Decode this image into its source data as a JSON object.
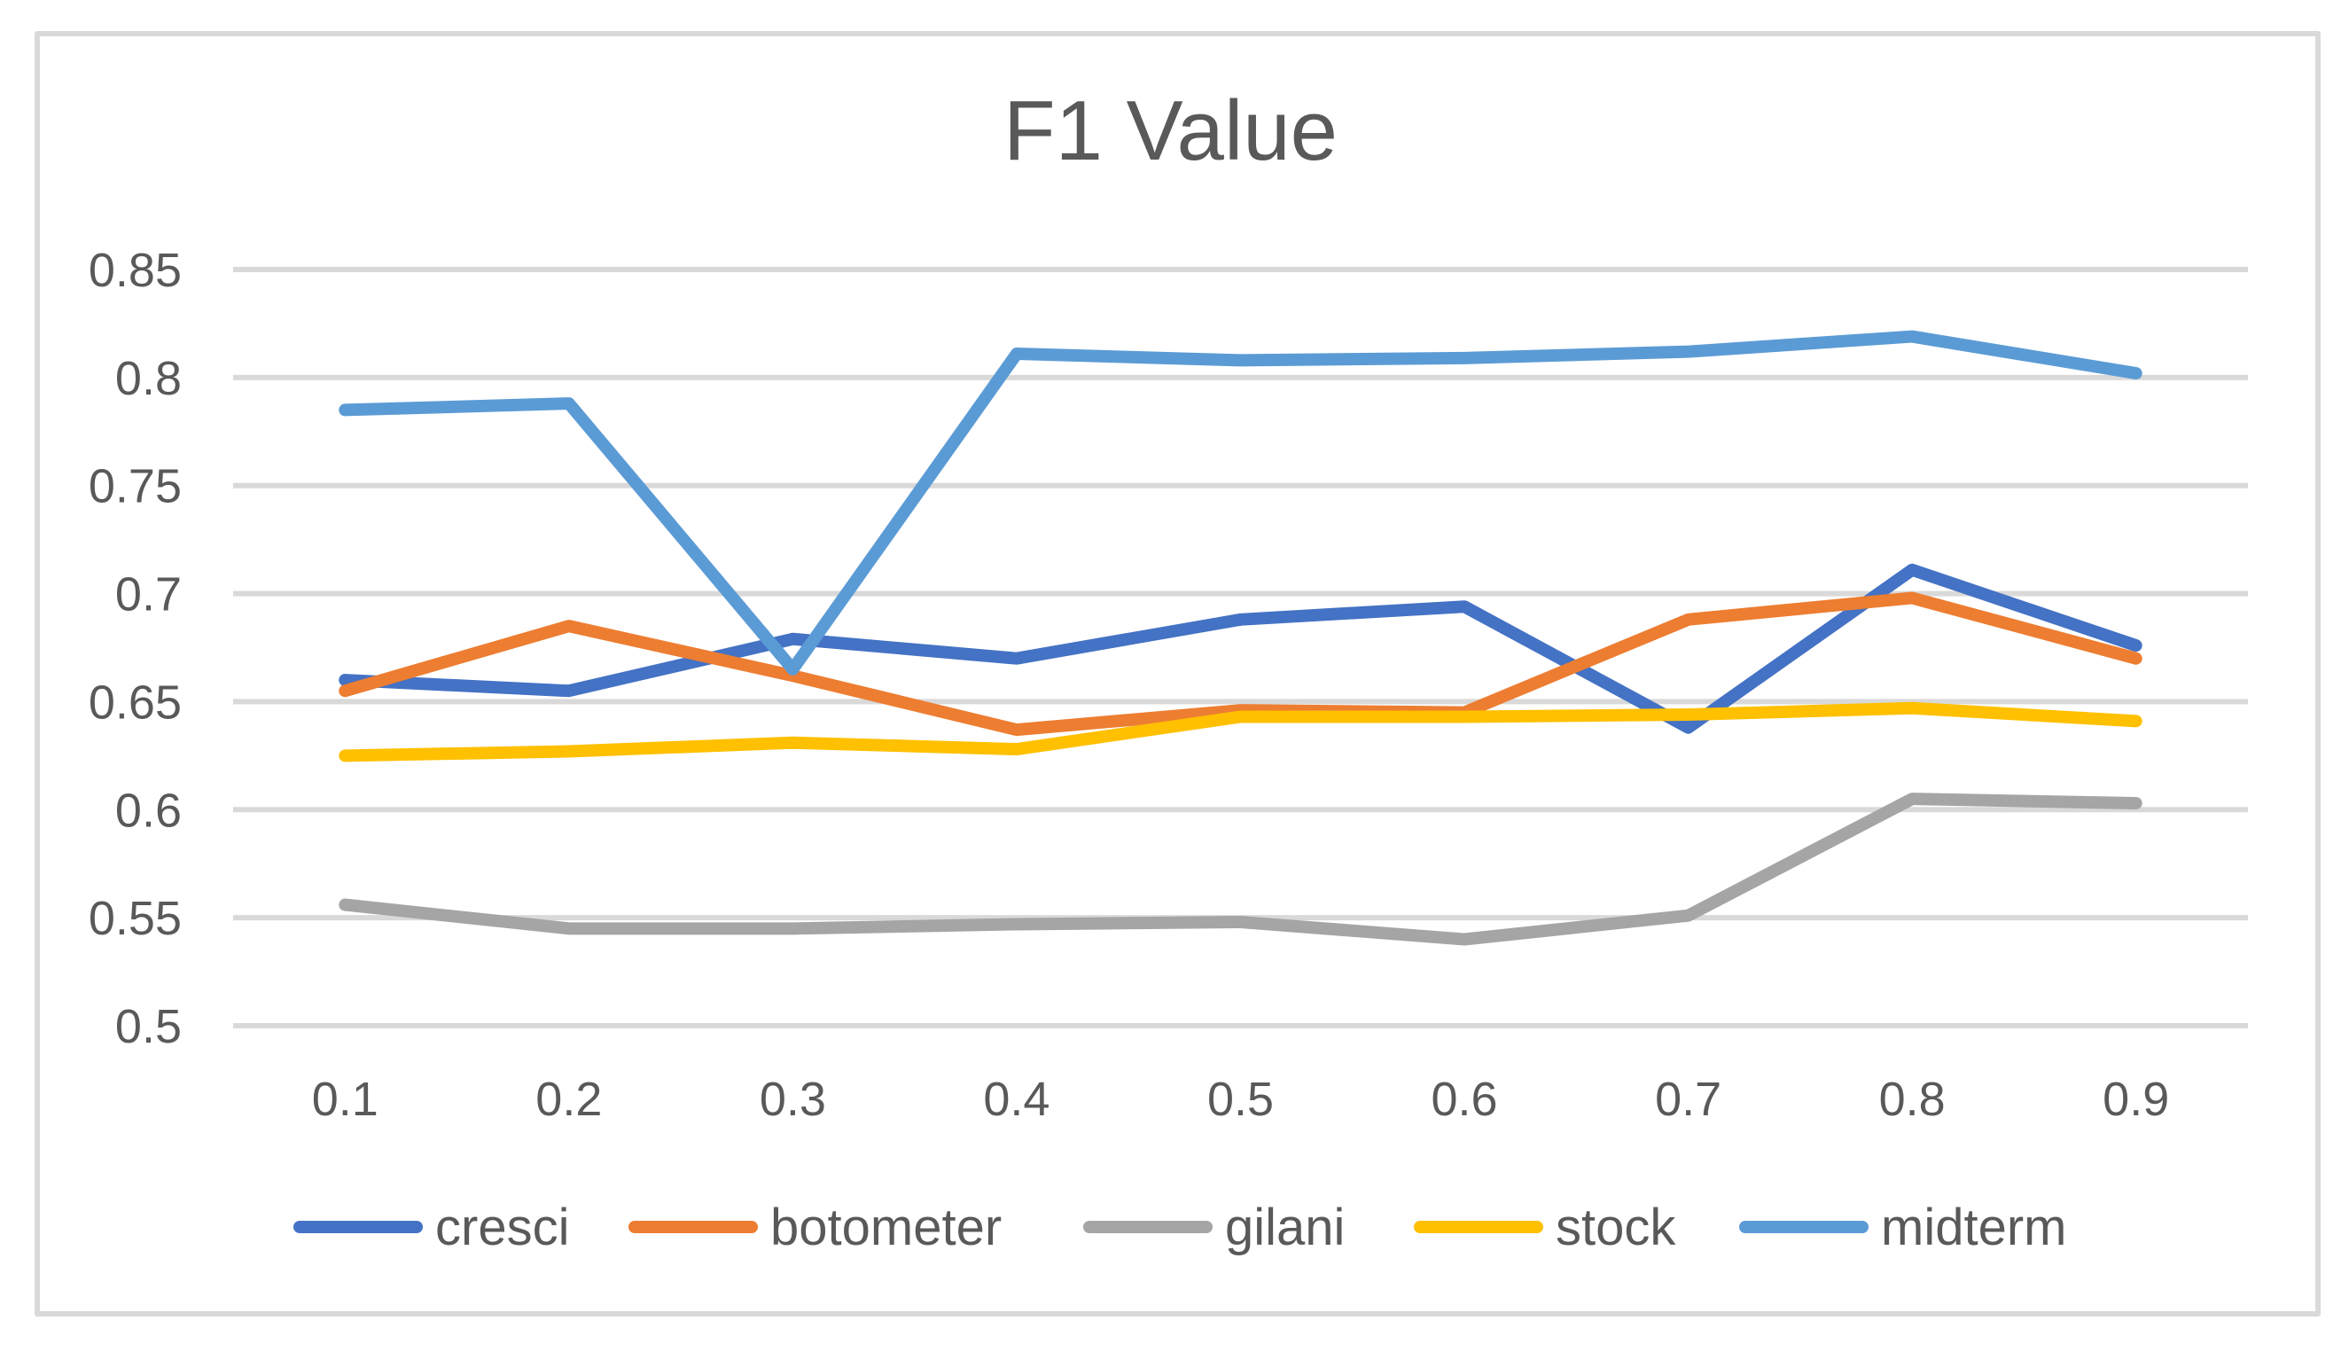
{
  "chart_data": {
    "type": "line",
    "title": "F1 Value",
    "xlabel": "",
    "ylabel": "",
    "categories": [
      "0.1",
      "0.2",
      "0.3",
      "0.4",
      "0.5",
      "0.6",
      "0.7",
      "0.8",
      "0.9"
    ],
    "y_ticks": [
      "0.85",
      "0.8",
      "0.75",
      "0.7",
      "0.65",
      "0.6",
      "0.55",
      "0.5"
    ],
    "ylim": [
      0.5,
      0.85
    ],
    "grid": true,
    "legend_position": "bottom",
    "text_color": "#595959",
    "grid_color": "#D9D9D9",
    "border_color": "#D9D9D9",
    "background_color": "#FFFFFF",
    "series": [
      {
        "name": "cresci",
        "color": "#4472C4",
        "values": [
          0.66,
          0.655,
          0.679,
          0.67,
          0.688,
          0.694,
          0.638,
          0.711,
          0.676
        ]
      },
      {
        "name": "botometer",
        "color": "#ED7D31",
        "values": [
          0.655,
          0.685,
          0.662,
          0.637,
          0.646,
          0.645,
          0.688,
          0.698,
          0.67
        ]
      },
      {
        "name": "gilani",
        "color": "#A5A5A5",
        "values": [
          0.556,
          0.545,
          0.545,
          0.547,
          0.548,
          0.54,
          0.551,
          0.605,
          0.603
        ]
      },
      {
        "name": "stock",
        "color": "#FFC000",
        "values": [
          0.625,
          0.627,
          0.631,
          0.628,
          0.643,
          0.643,
          0.644,
          0.647,
          0.641
        ]
      },
      {
        "name": "midterm",
        "color": "#5B9BD5",
        "values": [
          0.785,
          0.788,
          0.665,
          0.811,
          0.808,
          0.809,
          0.812,
          0.819,
          0.802
        ]
      }
    ]
  }
}
